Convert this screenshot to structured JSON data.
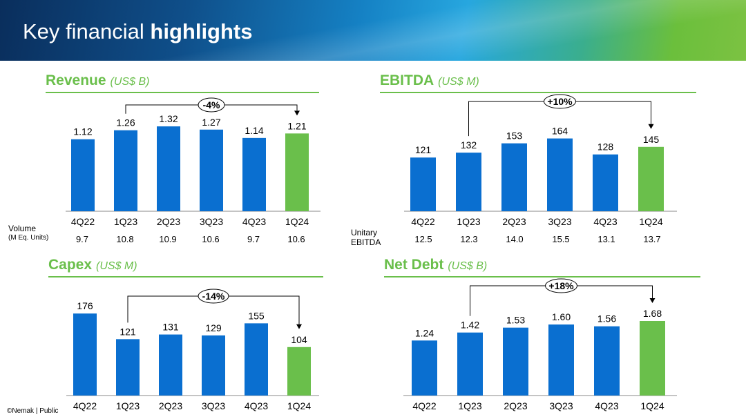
{
  "header": {
    "title_regular": "Key financial",
    "title_bold": "highlights"
  },
  "footer": "©Nemak | Public",
  "colors": {
    "bar_blue": "#0a6fd0",
    "bar_green": "#6abf4b",
    "accent_green": "#6abf4b"
  },
  "chart_data": [
    {
      "id": "revenue",
      "type": "bar",
      "title": "Revenue",
      "unit": "(US$ B)",
      "categories": [
        "4Q22",
        "1Q23",
        "2Q23",
        "3Q23",
        "4Q23",
        "1Q24"
      ],
      "values": [
        1.12,
        1.26,
        1.32,
        1.27,
        1.14,
        1.21
      ],
      "labels": [
        "1.12",
        "1.26",
        "1.32",
        "1.27",
        "1.14",
        "1.21"
      ],
      "highlight_index": 5,
      "ylim": [
        0,
        1.45
      ],
      "change": {
        "label": "-4%",
        "from": 1,
        "to": 5
      }
    },
    {
      "id": "ebitda",
      "type": "bar",
      "title": "EBITDA",
      "unit": "(US$ M)",
      "categories": [
        "4Q22",
        "1Q23",
        "2Q23",
        "3Q23",
        "4Q23",
        "1Q24"
      ],
      "values": [
        121,
        132,
        153,
        164,
        128,
        145
      ],
      "labels": [
        "121",
        "132",
        "153",
        "164",
        "128",
        "145"
      ],
      "highlight_index": 5,
      "ylim": [
        0,
        210
      ],
      "change": {
        "label": "+10%",
        "from": 1,
        "to": 5
      }
    },
    {
      "id": "capex",
      "type": "bar",
      "title": "Capex",
      "unit": "(US$ M)",
      "categories": [
        "4Q22",
        "1Q23",
        "2Q23",
        "3Q23",
        "4Q23",
        "1Q24"
      ],
      "values": [
        176,
        121,
        131,
        129,
        155,
        104
      ],
      "labels": [
        "176",
        "121",
        "131",
        "129",
        "155",
        "104"
      ],
      "highlight_index": 5,
      "ylim": [
        0,
        200
      ],
      "change": {
        "label": "-14%",
        "from": 1,
        "to": 5
      }
    },
    {
      "id": "netdebt",
      "type": "bar",
      "title": "Net Debt",
      "unit": "(US$ B)",
      "categories": [
        "4Q22",
        "1Q23",
        "2Q23",
        "3Q23",
        "4Q23",
        "1Q24"
      ],
      "values": [
        1.24,
        1.42,
        1.53,
        1.6,
        1.56,
        1.68
      ],
      "labels": [
        "1.24",
        "1.42",
        "1.53",
        "1.60",
        "1.56",
        "1.68"
      ],
      "highlight_index": 5,
      "ylim": [
        0,
        2.1
      ],
      "change": {
        "label": "+18%",
        "from": 1,
        "to": 5
      }
    }
  ],
  "volume": {
    "label": "Volume",
    "sublabel": "(M Eq. Units)",
    "values": [
      "9.7",
      "10.8",
      "10.9",
      "10.6",
      "9.7",
      "10.6"
    ]
  },
  "unitary": {
    "label_line1": "Unitary",
    "label_line2": "EBITDA",
    "values": [
      "12.5",
      "12.3",
      "14.0",
      "15.5",
      "13.1",
      "13.7"
    ]
  }
}
